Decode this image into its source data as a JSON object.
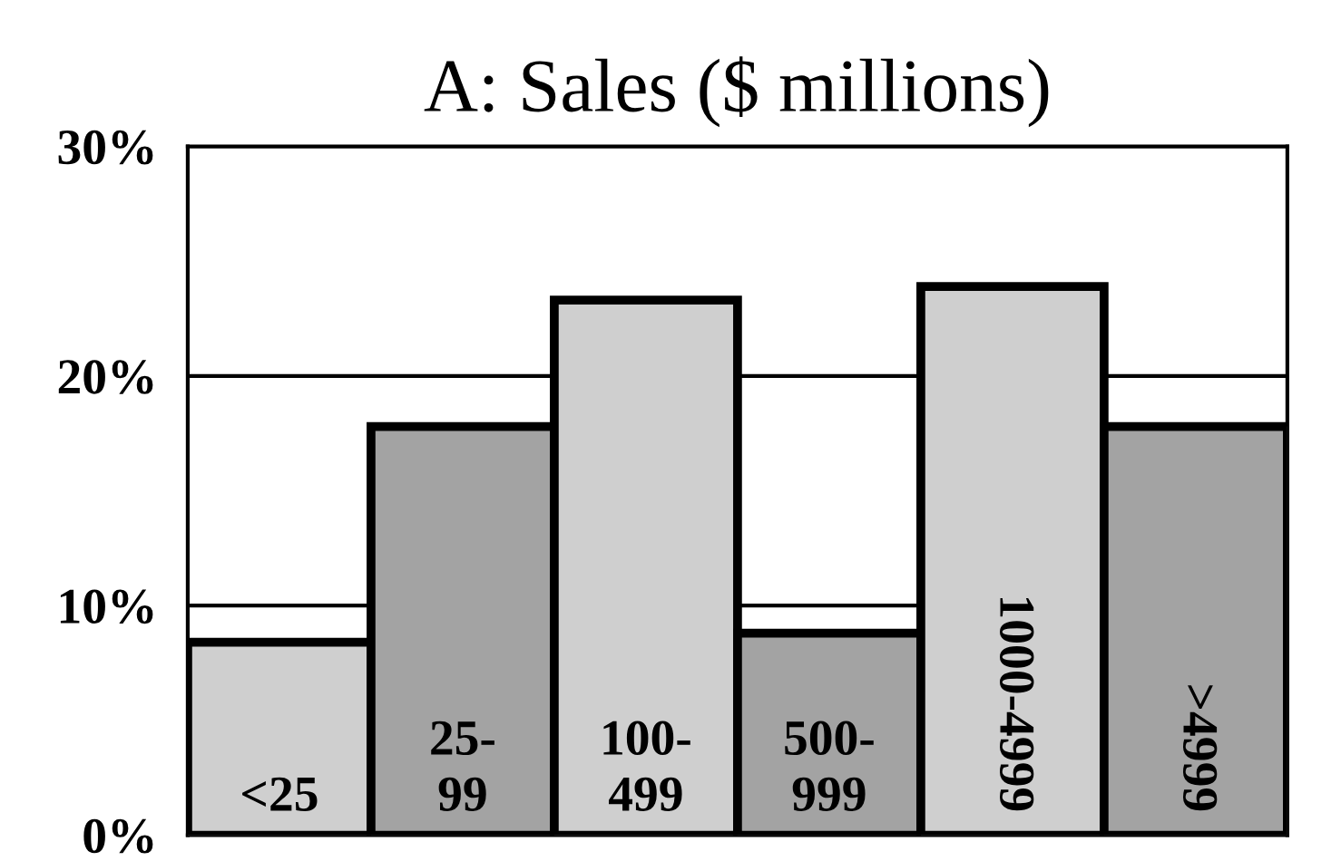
{
  "chart_data": {
    "type": "bar",
    "title": "A: Sales ($ millions)",
    "categories": [
      "<25",
      "25-\n99",
      "100-\n499",
      "500-\n999",
      "1000-4999",
      ">4999"
    ],
    "values": [
      8.4,
      17.8,
      23.3,
      8.8,
      23.9,
      17.8
    ],
    "colors": [
      "#cfcfcf",
      "#a3a3a3",
      "#cfcfcf",
      "#a3a3a3",
      "#cfcfcf",
      "#a3a3a3"
    ],
    "ylim": [
      0,
      30
    ],
    "yticks": [
      {
        "value": 0,
        "label": "0%"
      },
      {
        "value": 10,
        "label": "10%"
      },
      {
        "value": 20,
        "label": "20%"
      },
      {
        "value": 30,
        "label": "30%"
      }
    ],
    "grid": "y",
    "legend": false
  }
}
